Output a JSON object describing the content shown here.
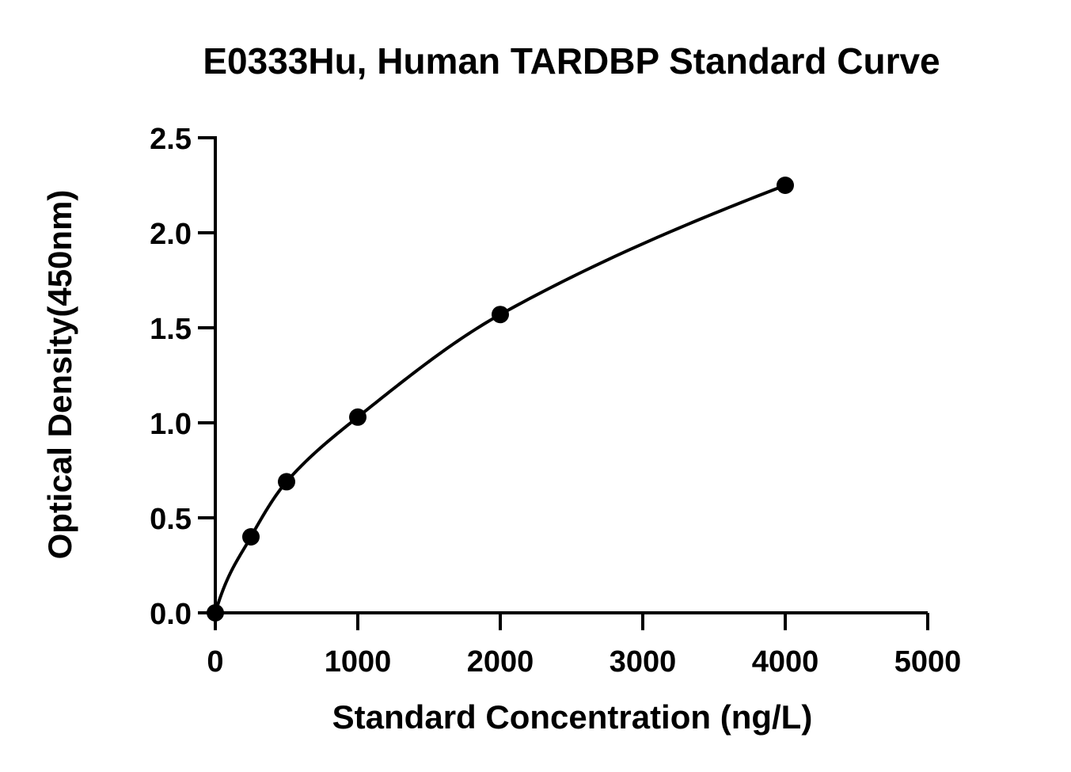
{
  "chart_data": {
    "type": "scatter",
    "title": "E0333Hu, Human TARDBP Standard Curve",
    "xlabel": "Standard Concentration (ng/L)",
    "ylabel": "Optical Density(450nm)",
    "xlim": [
      0,
      5000
    ],
    "ylim": [
      0,
      2.5
    ],
    "x_ticks": [
      0,
      1000,
      2000,
      3000,
      4000,
      5000
    ],
    "x_tick_labels": [
      "0",
      "1000",
      "2000",
      "3000",
      "4000",
      "5000"
    ],
    "y_ticks": [
      0,
      0.5,
      1.0,
      1.5,
      2.0,
      2.5
    ],
    "y_tick_labels": [
      "0.0",
      "0.5",
      "1.0",
      "1.5",
      "2.0",
      "2.5"
    ],
    "grid": false,
    "series": [
      {
        "x": [
          0,
          250,
          500,
          1000,
          2000,
          4000
        ],
        "y": [
          0.0,
          0.4,
          0.69,
          1.03,
          1.57,
          2.25
        ],
        "marker": "circle",
        "fit": "smooth-curve",
        "color": "#000000"
      }
    ]
  }
}
